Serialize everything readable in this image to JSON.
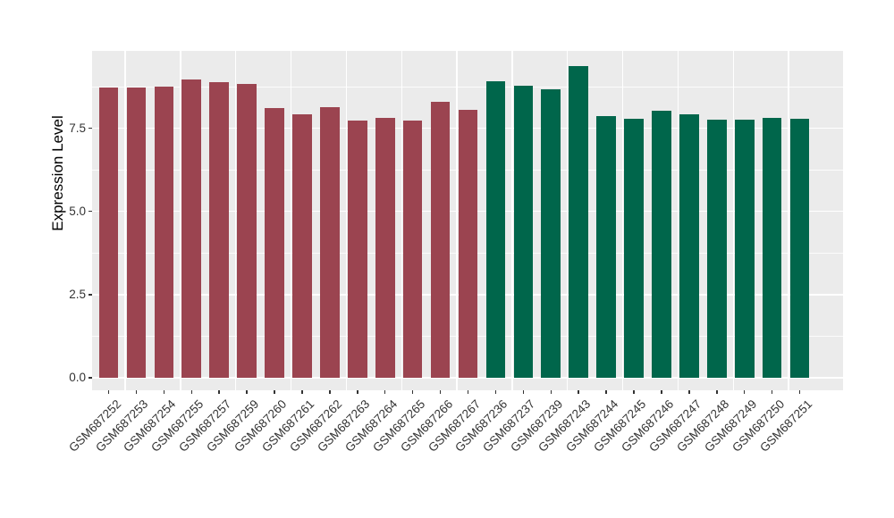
{
  "figure": {
    "background": "#FFFFFF",
    "panel_background": "#EBEBEB",
    "gridline_color": "#FFFFFF",
    "tick_mark_color": "#333333",
    "tick_label_color": "#333333",
    "axis_title_color": "#000000"
  },
  "chart_data": {
    "type": "bar",
    "title": "",
    "xlabel": "",
    "ylabel": "Expression Level",
    "ylim": [
      0,
      9.87
    ],
    "y_major_ticks": [
      0.0,
      2.5,
      5.0,
      7.5
    ],
    "y_minor_ticks": [
      1.25,
      3.75,
      6.25,
      8.75
    ],
    "grid": "major and minor horizontal white lines, vertical white lines at each bar center",
    "legend_position": "none",
    "group_colors": {
      "maroon": "#9B4450",
      "green": "#00664B"
    },
    "categories": [
      "GSM687252",
      "GSM687253",
      "GSM687254",
      "GSM687255",
      "GSM687257",
      "GSM687259",
      "GSM687260",
      "GSM687261",
      "GSM687262",
      "GSM687263",
      "GSM687264",
      "GSM687265",
      "GSM687266",
      "GSM687267",
      "GSM687236",
      "GSM687237",
      "GSM687239",
      "GSM687243",
      "GSM687244",
      "GSM687245",
      "GSM687246",
      "GSM687247",
      "GSM687248",
      "GSM687249",
      "GSM687250",
      "GSM687251"
    ],
    "values": [
      8.73,
      8.73,
      8.76,
      8.96,
      8.88,
      8.82,
      8.1,
      7.91,
      8.14,
      7.74,
      7.82,
      7.74,
      8.29,
      8.05,
      8.91,
      8.78,
      8.67,
      9.37,
      7.87,
      7.79,
      8.03,
      7.91,
      7.76,
      7.76,
      7.82,
      7.78
    ],
    "groups": [
      "maroon",
      "maroon",
      "maroon",
      "maroon",
      "maroon",
      "maroon",
      "maroon",
      "maroon",
      "maroon",
      "maroon",
      "maroon",
      "maroon",
      "maroon",
      "maroon",
      "green",
      "green",
      "green",
      "green",
      "green",
      "green",
      "green",
      "green",
      "green",
      "green",
      "green",
      "green"
    ]
  }
}
